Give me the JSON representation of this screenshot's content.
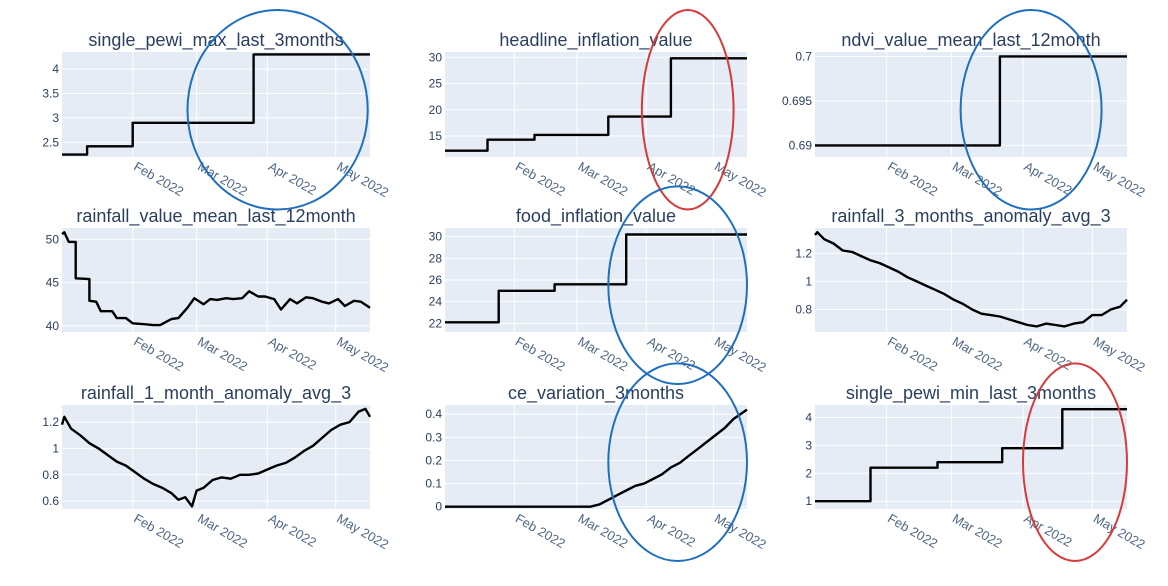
{
  "chart_data": [
    {
      "type": "line",
      "title": "single_pewi_max_last_3months",
      "yticks": [
        "2.5",
        "3",
        "3.5",
        "4"
      ],
      "ytick_values": [
        2.5,
        3,
        3.5,
        4
      ],
      "ylim": [
        2.2,
        4.35
      ],
      "xticks": [
        "Feb 2022",
        "Mar 2022",
        "Apr 2022",
        "May 2022"
      ],
      "x": [
        "2022-01-01",
        "2022-01-12",
        "2022-01-12",
        "2022-02-01",
        "2022-02-01",
        "2022-03-01",
        "2022-03-01",
        "2022-03-26",
        "2022-03-26",
        "2022-05-16"
      ],
      "y": [
        2.25,
        2.25,
        2.42,
        2.42,
        2.9,
        2.9,
        2.9,
        2.9,
        4.3,
        4.3
      ],
      "highlight": {
        "shape": "ellipse",
        "color": "#1f6fbf",
        "from": "2022-02-25",
        "to": "2022-05-15"
      }
    },
    {
      "type": "line",
      "title": "headline_inflation_value",
      "yticks": [
        "15",
        "20",
        "25",
        "30"
      ],
      "ytick_values": [
        15,
        20,
        25,
        30
      ],
      "ylim": [
        11,
        31
      ],
      "xticks": [
        "Feb 2022",
        "Mar 2022",
        "Apr 2022",
        "May 2022"
      ],
      "x": [
        "2022-01-01",
        "2022-01-20",
        "2022-01-20",
        "2022-02-10",
        "2022-02-10",
        "2022-03-15",
        "2022-03-15",
        "2022-04-12",
        "2022-04-12",
        "2022-05-16"
      ],
      "y": [
        12.2,
        12.2,
        14.3,
        14.3,
        15.2,
        15.2,
        18.7,
        18.7,
        29.8,
        29.8
      ],
      "highlight": {
        "shape": "ellipse",
        "color": "#d63a3a",
        "from": "2022-03-30",
        "to": "2022-05-10"
      }
    },
    {
      "type": "line",
      "title": "ndvi_value_mean_last_12month",
      "yticks": [
        "0.69",
        "0.695",
        "0.7"
      ],
      "ytick_values": [
        0.69,
        0.695,
        0.7
      ],
      "ylim": [
        0.6887,
        0.7005
      ],
      "xticks": [
        "Feb 2022",
        "Mar 2022",
        "Apr 2022",
        "May 2022"
      ],
      "x": [
        "2022-01-01",
        "2022-03-22",
        "2022-03-22",
        "2022-05-16"
      ],
      "y": [
        0.69,
        0.69,
        0.7,
        0.7
      ],
      "highlight": {
        "shape": "ellipse",
        "color": "#1f6fbf",
        "from": "2022-03-05",
        "to": "2022-05-05"
      }
    },
    {
      "type": "line",
      "title": "rainfall_value_mean_last_12month",
      "yticks": [
        "40",
        "45",
        "50"
      ],
      "ytick_values": [
        40,
        45,
        50
      ],
      "ylim": [
        39.3,
        51.3
      ],
      "xticks": [
        "Feb 2022",
        "Mar 2022",
        "Apr 2022",
        "May 2022"
      ],
      "x": [
        "2022-01-01",
        "2022-01-02",
        "2022-01-04",
        "2022-01-07",
        "2022-01-07",
        "2022-01-13",
        "2022-01-13",
        "2022-01-16",
        "2022-01-18",
        "2022-01-23",
        "2022-01-25",
        "2022-01-29",
        "2022-02-01",
        "2022-02-06",
        "2022-02-10",
        "2022-02-13",
        "2022-02-18",
        "2022-02-21",
        "2022-02-25",
        "2022-02-28",
        "2022-03-04",
        "2022-03-07",
        "2022-03-10",
        "2022-03-14",
        "2022-03-17",
        "2022-03-21",
        "2022-03-24",
        "2022-03-28",
        "2022-03-31",
        "2022-04-04",
        "2022-04-07",
        "2022-04-11",
        "2022-04-14",
        "2022-04-18",
        "2022-04-21",
        "2022-04-25",
        "2022-04-28",
        "2022-05-02",
        "2022-05-05",
        "2022-05-09",
        "2022-05-12",
        "2022-05-16"
      ],
      "y": [
        50.6,
        50.8,
        49.7,
        49.7,
        45.5,
        45.4,
        42.9,
        42.8,
        41.7,
        41.7,
        40.9,
        40.9,
        40.3,
        40.2,
        40.1,
        40.1,
        40.8,
        40.9,
        42.1,
        43.2,
        42.5,
        43.1,
        43.0,
        43.2,
        43.1,
        43.2,
        44.0,
        43.4,
        43.4,
        43.1,
        41.9,
        43.1,
        42.6,
        43.3,
        43.2,
        42.8,
        42.6,
        43.1,
        42.3,
        42.9,
        42.8,
        42.1
      ],
      "highlight": null
    },
    {
      "type": "line",
      "title": "food_inflation_value",
      "yticks": [
        "22",
        "24",
        "26",
        "28",
        "30"
      ],
      "ytick_values": [
        22,
        24,
        26,
        28,
        30
      ],
      "ylim": [
        21.2,
        30.8
      ],
      "xticks": [
        "Feb 2022",
        "Mar 2022",
        "Apr 2022",
        "May 2022"
      ],
      "x": [
        "2022-01-01",
        "2022-01-25",
        "2022-01-25",
        "2022-02-19",
        "2022-02-19",
        "2022-03-23",
        "2022-03-23",
        "2022-05-16"
      ],
      "y": [
        22.1,
        22.1,
        25.0,
        25.0,
        25.6,
        25.6,
        30.2,
        30.2
      ],
      "highlight": {
        "shape": "ellipse",
        "color": "#1f6fbf",
        "from": "2022-03-15",
        "to": "2022-05-16"
      }
    },
    {
      "type": "line",
      "title": "rainfall_3_months_anomaly_avg_3",
      "yticks": [
        "0.8",
        "1",
        "1.2"
      ],
      "ytick_values": [
        0.8,
        1,
        1.2
      ],
      "ylim": [
        0.64,
        1.38
      ],
      "xticks": [
        "Feb 2022",
        "Mar 2022",
        "Apr 2022",
        "May 2022"
      ],
      "x": [
        "2022-01-01",
        "2022-01-02",
        "2022-01-05",
        "2022-01-09",
        "2022-01-13",
        "2022-01-17",
        "2022-01-21",
        "2022-01-25",
        "2022-01-29",
        "2022-02-02",
        "2022-02-06",
        "2022-02-10",
        "2022-02-14",
        "2022-02-18",
        "2022-02-22",
        "2022-02-26",
        "2022-03-02",
        "2022-03-06",
        "2022-03-10",
        "2022-03-14",
        "2022-03-18",
        "2022-03-22",
        "2022-03-26",
        "2022-03-30",
        "2022-04-03",
        "2022-04-07",
        "2022-04-11",
        "2022-04-15",
        "2022-04-19",
        "2022-04-23",
        "2022-04-27",
        "2022-05-01",
        "2022-05-05",
        "2022-05-09",
        "2022-05-13",
        "2022-05-16"
      ],
      "y": [
        1.33,
        1.35,
        1.3,
        1.27,
        1.22,
        1.21,
        1.18,
        1.15,
        1.13,
        1.1,
        1.07,
        1.03,
        1.0,
        0.97,
        0.94,
        0.91,
        0.87,
        0.84,
        0.8,
        0.77,
        0.76,
        0.75,
        0.73,
        0.71,
        0.69,
        0.68,
        0.7,
        0.69,
        0.68,
        0.7,
        0.71,
        0.76,
        0.76,
        0.8,
        0.82,
        0.87
      ],
      "highlight": null
    },
    {
      "type": "line",
      "title": "rainfall_1_month_anomaly_avg_3",
      "yticks": [
        "0.6",
        "0.8",
        "1",
        "1.2"
      ],
      "ytick_values": [
        0.6,
        0.8,
        1,
        1.2
      ],
      "ylim": [
        0.54,
        1.33
      ],
      "xticks": [
        "Feb 2022",
        "Mar 2022",
        "Apr 2022",
        "May 2022"
      ],
      "x": [
        "2022-01-01",
        "2022-01-02",
        "2022-01-05",
        "2022-01-09",
        "2022-01-13",
        "2022-01-17",
        "2022-01-21",
        "2022-01-25",
        "2022-01-29",
        "2022-02-02",
        "2022-02-06",
        "2022-02-10",
        "2022-02-14",
        "2022-02-18",
        "2022-02-21",
        "2022-02-24",
        "2022-02-27",
        "2022-03-01",
        "2022-03-04",
        "2022-03-08",
        "2022-03-12",
        "2022-03-16",
        "2022-03-20",
        "2022-03-24",
        "2022-03-28",
        "2022-04-01",
        "2022-04-05",
        "2022-04-09",
        "2022-04-13",
        "2022-04-17",
        "2022-04-21",
        "2022-04-25",
        "2022-04-29",
        "2022-05-03",
        "2022-05-07",
        "2022-05-11",
        "2022-05-14",
        "2022-05-16"
      ],
      "y": [
        1.18,
        1.24,
        1.15,
        1.1,
        1.04,
        1.0,
        0.95,
        0.9,
        0.87,
        0.82,
        0.77,
        0.73,
        0.7,
        0.66,
        0.61,
        0.63,
        0.56,
        0.68,
        0.7,
        0.76,
        0.78,
        0.77,
        0.8,
        0.8,
        0.81,
        0.84,
        0.87,
        0.89,
        0.93,
        0.98,
        1.02,
        1.08,
        1.14,
        1.18,
        1.2,
        1.28,
        1.3,
        1.24
      ],
      "highlight": null
    },
    {
      "type": "line",
      "title": "ce_variation_3months",
      "yticks": [
        "0",
        "0.1",
        "0.2",
        "0.3",
        "0.4"
      ],
      "ytick_values": [
        0,
        0.1,
        0.2,
        0.3,
        0.4
      ],
      "ylim": [
        -0.01,
        0.44
      ],
      "xticks": [
        "Feb 2022",
        "Mar 2022",
        "Apr 2022",
        "May 2022"
      ],
      "x": [
        "2022-01-01",
        "2022-03-07",
        "2022-03-11",
        "2022-03-15",
        "2022-03-19",
        "2022-03-23",
        "2022-03-27",
        "2022-03-31",
        "2022-04-04",
        "2022-04-08",
        "2022-04-12",
        "2022-04-16",
        "2022-04-20",
        "2022-04-24",
        "2022-04-28",
        "2022-05-02",
        "2022-05-06",
        "2022-05-10",
        "2022-05-16"
      ],
      "y": [
        0.0,
        0.0,
        0.01,
        0.03,
        0.05,
        0.07,
        0.09,
        0.1,
        0.12,
        0.14,
        0.17,
        0.19,
        0.22,
        0.25,
        0.28,
        0.31,
        0.34,
        0.38,
        0.42
      ],
      "highlight": {
        "shape": "ellipse",
        "color": "#1f6fbf",
        "from": "2022-03-15",
        "to": "2022-05-16"
      }
    },
    {
      "type": "line",
      "title": "single_pewi_min_last_3months",
      "yticks": [
        "1",
        "2",
        "3",
        "4"
      ],
      "ytick_values": [
        1,
        2,
        3,
        4
      ],
      "ylim": [
        0.72,
        4.45
      ],
      "xticks": [
        "Feb 2022",
        "Mar 2022",
        "Apr 2022",
        "May 2022"
      ],
      "x": [
        "2022-01-01",
        "2022-01-25",
        "2022-01-25",
        "2022-02-23",
        "2022-02-23",
        "2022-03-23",
        "2022-03-23",
        "2022-04-18",
        "2022-04-18",
        "2022-05-16"
      ],
      "y": [
        1.0,
        1.0,
        2.2,
        2.2,
        2.4,
        2.4,
        2.9,
        2.9,
        4.3,
        4.3
      ],
      "highlight": {
        "shape": "ellipse",
        "color": "#d63a3a",
        "from": "2022-04-01",
        "to": "2022-05-16"
      }
    }
  ]
}
